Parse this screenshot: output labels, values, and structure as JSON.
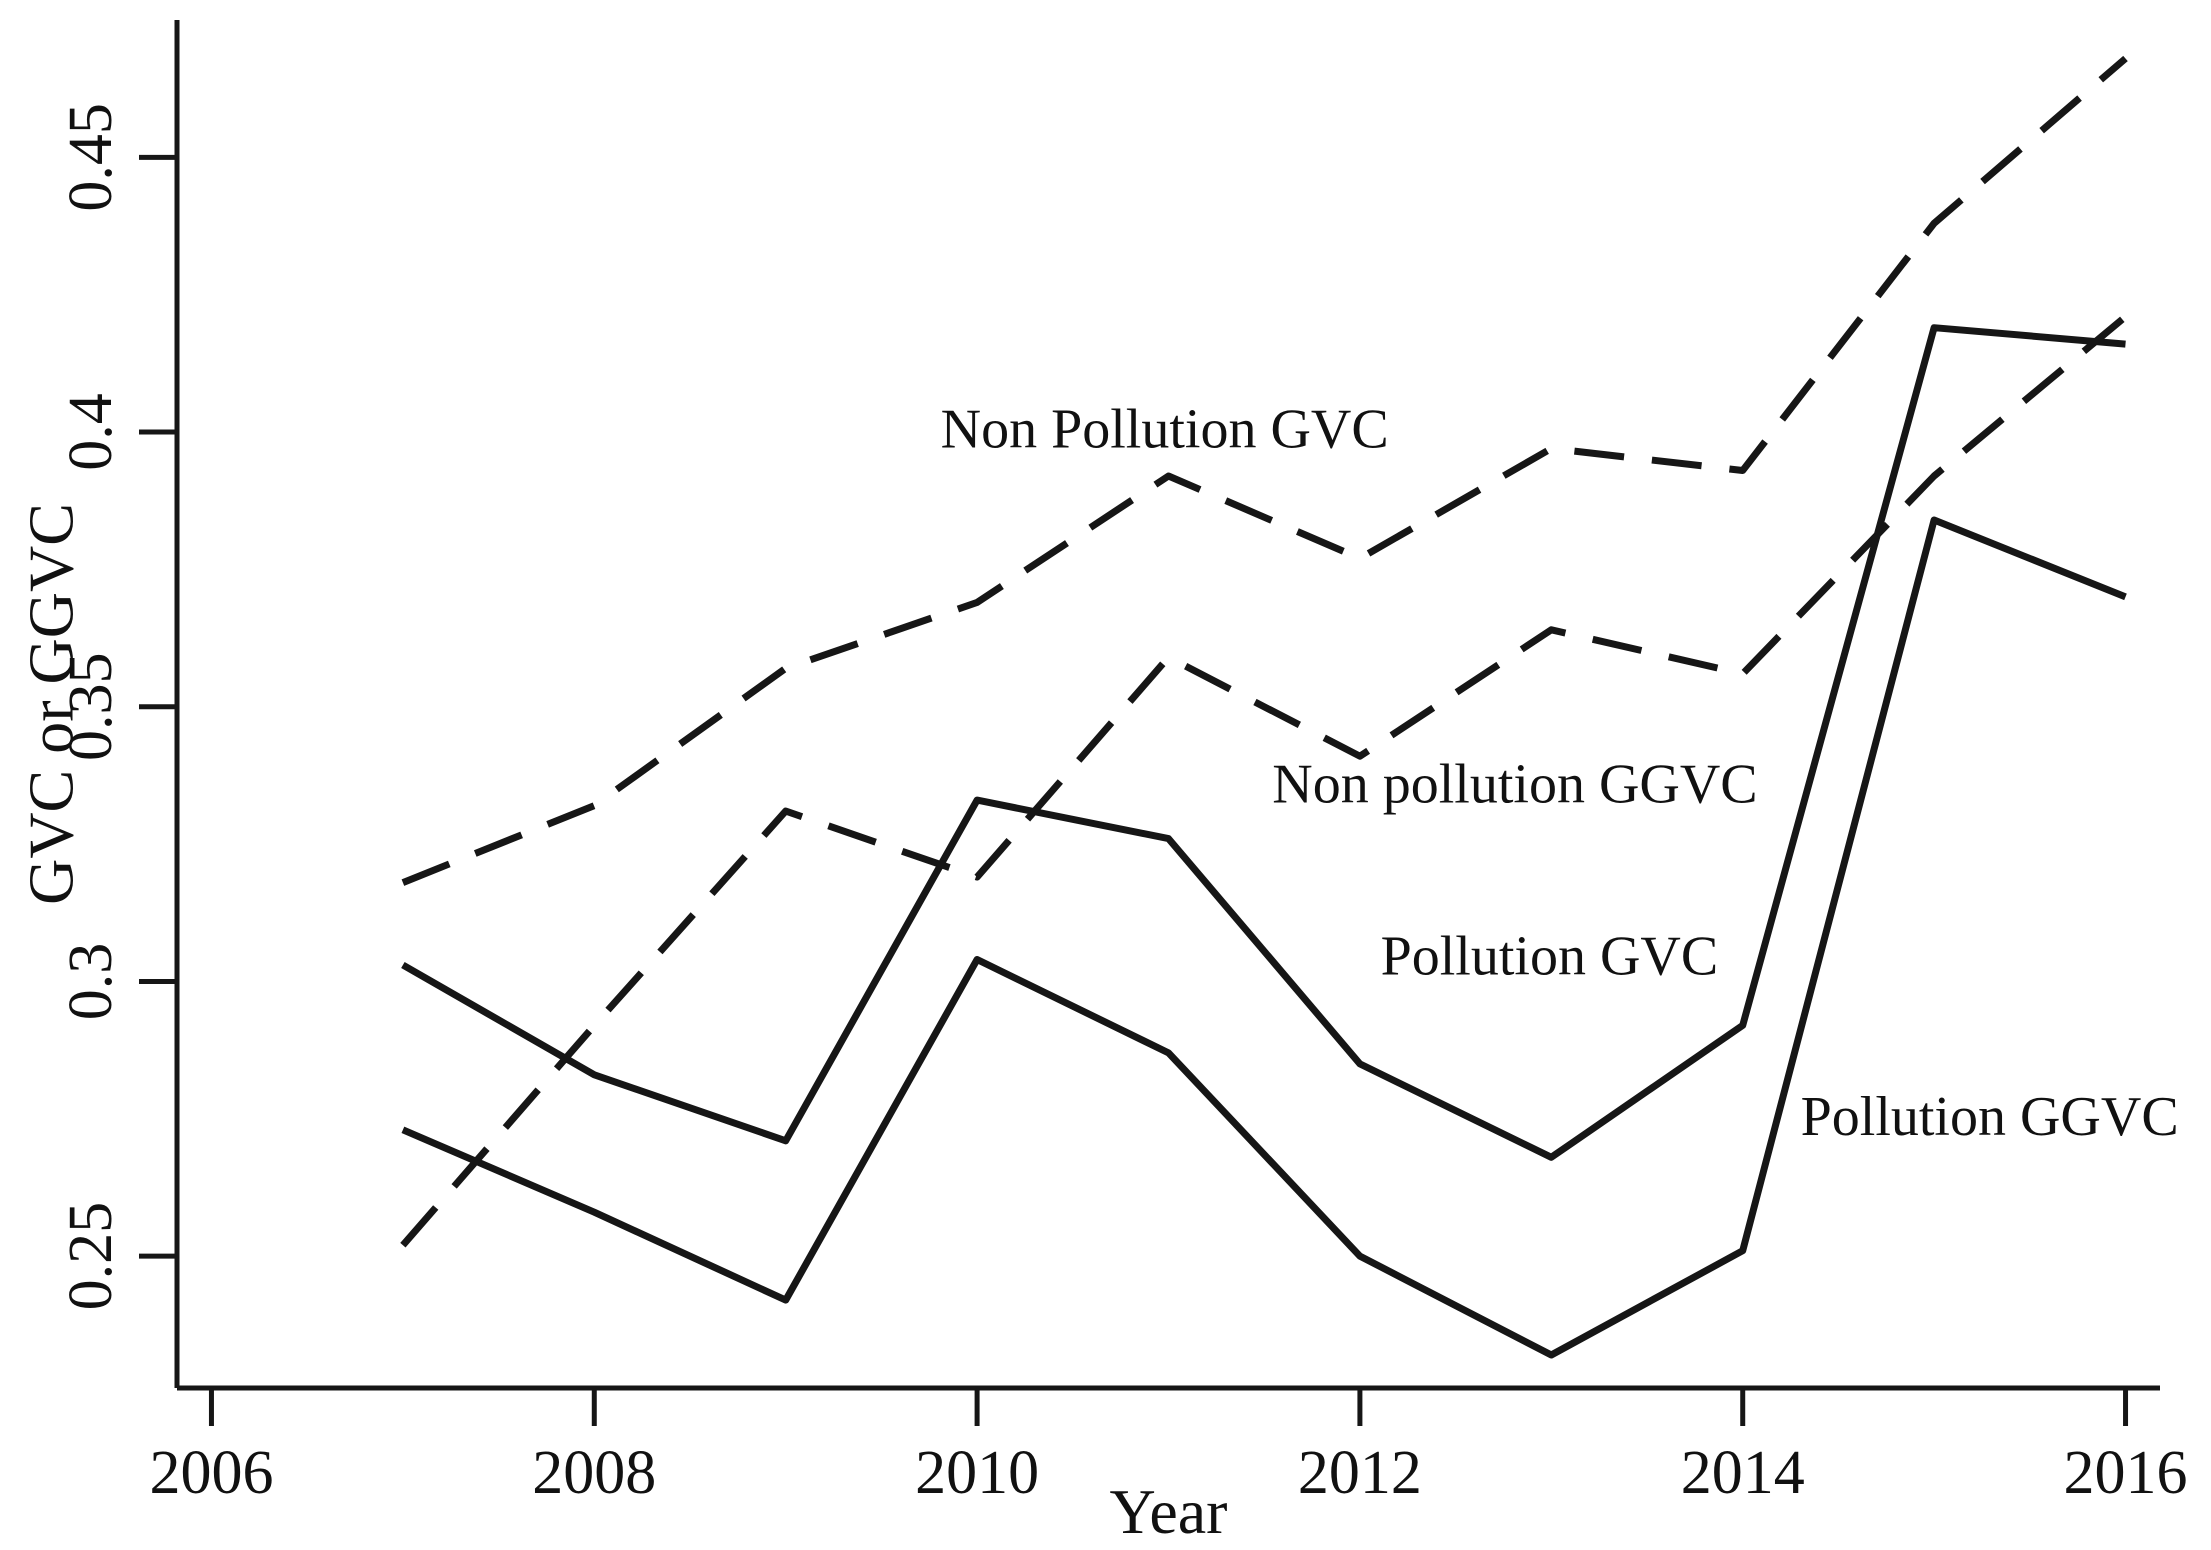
{
  "figure": {
    "background_color": "#ffffff",
    "line_color": "#161616",
    "axis_color": "#161616"
  },
  "chart_data": {
    "type": "line",
    "title": "",
    "xlabel": "Year",
    "ylabel": "GVC or GGVC",
    "x": [
      2007,
      2008,
      2009,
      2010,
      2011,
      2012,
      2013,
      2014,
      2015,
      2016
    ],
    "x_ticks": [
      2006,
      2008,
      2010,
      2012,
      2014,
      2016
    ],
    "x_tick_labels": [
      "2006",
      "2008",
      "2010",
      "2012",
      "2014",
      "2016"
    ],
    "y_ticks": [
      0.25,
      0.3,
      0.35,
      0.4,
      0.45
    ],
    "y_tick_labels": [
      "0.25",
      "0.3",
      "0.35",
      "0.4",
      "0.45"
    ],
    "xlim": [
      2005.82,
      2016.18
    ],
    "ylim": [
      0.226,
      0.475
    ],
    "grid": false,
    "legend_position": "inline-annotations",
    "series": [
      {
        "name": "Non Pollution GVC",
        "style": "dashed",
        "values": [
          0.318,
          0.332,
          0.357,
          0.369,
          0.392,
          0.377,
          0.397,
          0.393,
          0.438,
          0.468
        ]
      },
      {
        "name": "Non pollution GGVC",
        "style": "dashed",
        "values": [
          0.252,
          0.292,
          0.331,
          0.319,
          0.359,
          0.341,
          0.364,
          0.356,
          0.392,
          0.421
        ]
      },
      {
        "name": "Pollution GVC",
        "style": "solid",
        "values": [
          0.303,
          0.283,
          0.271,
          0.333,
          0.326,
          0.285,
          0.268,
          0.292,
          0.419,
          0.416
        ]
      },
      {
        "name": "Pollution GGVC",
        "style": "solid",
        "values": [
          0.273,
          0.258,
          0.242,
          0.304,
          0.287,
          0.25,
          0.232,
          0.251,
          0.384,
          0.37
        ]
      }
    ],
    "annotations": [
      {
        "text": "Non Pollution GVC",
        "x": 2010.98,
        "y": 0.3995
      },
      {
        "text": "Non pollution GGVC",
        "x": 2012.81,
        "y": 0.3349
      },
      {
        "text": "Pollution GVC",
        "x": 2012.99,
        "y": 0.3036
      },
      {
        "text": "Pollution GGVC",
        "x": 2015.29,
        "y": 0.2744
      }
    ]
  }
}
